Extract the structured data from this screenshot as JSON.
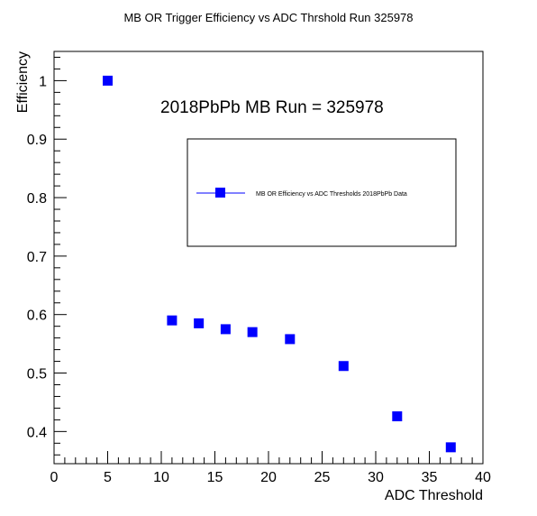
{
  "chart_data": {
    "type": "scatter",
    "title": "MB OR Trigger Efficiency vs ADC Thrshold Run 325978",
    "xlabel": "ADC Threshold",
    "ylabel": "Efficiency",
    "xlim": [
      0,
      40
    ],
    "ylim": [
      0.345,
      1.05
    ],
    "x_ticks": [
      0,
      5,
      10,
      15,
      20,
      25,
      30,
      35,
      40
    ],
    "y_ticks": [
      0.4,
      0.5,
      0.6,
      0.7,
      0.8,
      0.9,
      1
    ],
    "annotation": "2018PbPb MB Run = 325978",
    "legend_position": "upper-right",
    "grid": false,
    "series": [
      {
        "name": "MB OR Efficiency vs ADC Thresholds 2018PbPb Data",
        "color": "#0000ff",
        "marker": "square",
        "x": [
          5,
          11,
          13.5,
          16,
          18.5,
          22,
          27,
          32,
          37
        ],
        "y": [
          1.0,
          0.59,
          0.585,
          0.575,
          0.57,
          0.558,
          0.512,
          0.426,
          0.373
        ]
      }
    ]
  }
}
